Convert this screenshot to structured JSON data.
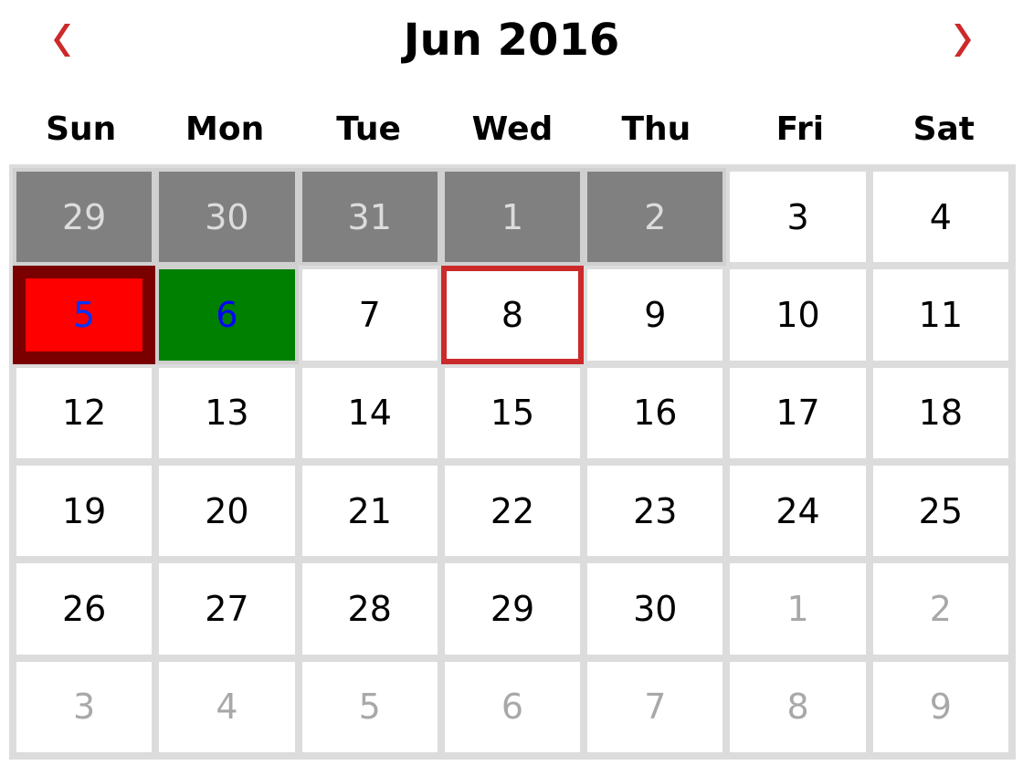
{
  "calendar": {
    "title": "Jun 2016",
    "nav_prev": "‹",
    "nav_next": "›",
    "weekdays": [
      "Sun",
      "Mon",
      "Tue",
      "Wed",
      "Thu",
      "Fri",
      "Sat"
    ],
    "weeks": [
      [
        {
          "day": "29",
          "state": "disabled"
        },
        {
          "day": "30",
          "state": "disabled"
        },
        {
          "day": "31",
          "state": "disabled"
        },
        {
          "day": "1",
          "state": "disabled"
        },
        {
          "day": "2",
          "state": "disabled"
        },
        {
          "day": "3",
          "state": "normal"
        },
        {
          "day": "4",
          "state": "normal"
        }
      ],
      [
        {
          "day": "5",
          "state": "range-start"
        },
        {
          "day": "6",
          "state": "range-end"
        },
        {
          "day": "7",
          "state": "normal"
        },
        {
          "day": "8",
          "state": "today"
        },
        {
          "day": "9",
          "state": "normal"
        },
        {
          "day": "10",
          "state": "normal"
        },
        {
          "day": "11",
          "state": "normal"
        }
      ],
      [
        {
          "day": "12",
          "state": "normal"
        },
        {
          "day": "13",
          "state": "normal"
        },
        {
          "day": "14",
          "state": "normal"
        },
        {
          "day": "15",
          "state": "normal"
        },
        {
          "day": "16",
          "state": "normal"
        },
        {
          "day": "17",
          "state": "normal"
        },
        {
          "day": "18",
          "state": "normal"
        }
      ],
      [
        {
          "day": "19",
          "state": "normal"
        },
        {
          "day": "20",
          "state": "normal"
        },
        {
          "day": "21",
          "state": "normal"
        },
        {
          "day": "22",
          "state": "normal"
        },
        {
          "day": "23",
          "state": "normal"
        },
        {
          "day": "24",
          "state": "normal"
        },
        {
          "day": "25",
          "state": "normal"
        }
      ],
      [
        {
          "day": "26",
          "state": "normal"
        },
        {
          "day": "27",
          "state": "normal"
        },
        {
          "day": "28",
          "state": "normal"
        },
        {
          "day": "29",
          "state": "normal"
        },
        {
          "day": "30",
          "state": "normal"
        },
        {
          "day": "1",
          "state": "neighbor"
        },
        {
          "day": "2",
          "state": "neighbor"
        }
      ],
      [
        {
          "day": "3",
          "state": "neighbor"
        },
        {
          "day": "4",
          "state": "neighbor"
        },
        {
          "day": "5",
          "state": "neighbor"
        },
        {
          "day": "6",
          "state": "neighbor"
        },
        {
          "day": "7",
          "state": "neighbor"
        },
        {
          "day": "8",
          "state": "neighbor"
        },
        {
          "day": "9",
          "state": "neighbor"
        }
      ]
    ]
  },
  "colors": {
    "accent": "#cc2a2a",
    "disabled_bg": "#808080",
    "range_start_bg": "#ff0000",
    "range_end_bg": "#008000",
    "grid_bg": "#dcdcdc"
  }
}
